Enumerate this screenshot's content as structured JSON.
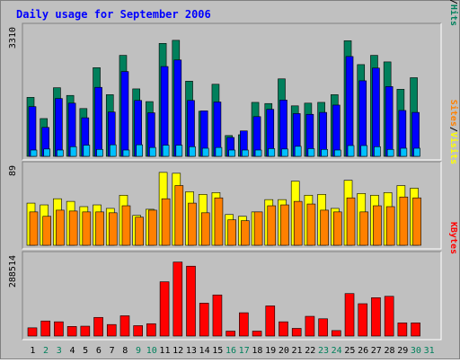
{
  "chart_data": {
    "type": "bar",
    "title": "Daily usage for September 2006",
    "categories": [
      "1",
      "2",
      "3",
      "4",
      "5",
      "6",
      "7",
      "8",
      "9",
      "10",
      "11",
      "12",
      "13",
      "14",
      "15",
      "16",
      "17",
      "18",
      "19",
      "20",
      "21",
      "22",
      "23",
      "24",
      "25",
      "26",
      "27",
      "28",
      "29",
      "30",
      "31"
    ],
    "weekend_days": [
      2,
      3,
      9,
      10,
      16,
      17,
      23,
      24,
      30,
      31
    ],
    "colors": {
      "background": "#c0c0c0",
      "frame": "#808080",
      "title": "#0000ff",
      "hits": "#00805c",
      "files": "#0000ff",
      "pages": "#00c0ff",
      "visits": "#ffff00",
      "sites": "#ff8000",
      "kbytes": "#ff0000",
      "weekday_label": "#000000",
      "weekend_label": "#00805c"
    },
    "panels": [
      {
        "id": "requests",
        "max_label": "3310",
        "ylim": [
          0,
          3310
        ],
        "legend": [
          {
            "text": "Pages",
            "color": "#00c0ff"
          },
          {
            "text": "/",
            "color": "#000000"
          },
          {
            "text": "Files",
            "color": "#0000ff"
          },
          {
            "text": "/",
            "color": "#000000"
          },
          {
            "text": "Hits",
            "color": "#00805c"
          }
        ],
        "series": [
          {
            "name": "Hits",
            "values": [
              1530,
              980,
              1780,
              1580,
              1240,
              2300,
              1600,
              2620,
              1750,
              1420,
              2930,
              3010,
              1950,
              1170,
              1870,
              540,
              560,
              1400,
              1370,
              2010,
              1310,
              1380,
              1400,
              1600,
              3000,
              2380,
              2620,
              2450,
              1740,
              2040,
              0
            ]
          },
          {
            "name": "Files",
            "values": [
              1290,
              750,
              1500,
              1380,
              1000,
              1790,
              1150,
              2200,
              1450,
              1130,
              2330,
              2500,
              1450,
              1180,
              1410,
              490,
              660,
              1030,
              1220,
              1460,
              1110,
              1090,
              1140,
              1330,
              2590,
              1960,
              2290,
              1810,
              1190,
              1140,
              0
            ]
          },
          {
            "name": "Pages",
            "values": [
              150,
              190,
              160,
              250,
              290,
              180,
              300,
              160,
              300,
              230,
              290,
              290,
              250,
              210,
              230,
              100,
              120,
              140,
              200,
              190,
              260,
              200,
              180,
              160,
              280,
              280,
              250,
              180,
              210,
              210,
              0
            ]
          }
        ]
      },
      {
        "id": "visits",
        "max_label": "89",
        "ylim": [
          0,
          89
        ],
        "legend": [
          {
            "text": "Sites",
            "color": "#ff8000"
          },
          {
            "text": "/",
            "color": "#000000"
          },
          {
            "text": "Visits",
            "color": "#ffff00"
          }
        ],
        "series": [
          {
            "name": "Visits",
            "values": [
              48,
              46,
              53,
              50,
              44,
              46,
              42,
              57,
              34,
              41,
              83,
              82,
              61,
              58,
              60,
              35,
              33,
              38,
              52,
              52,
              73,
              57,
              58,
              42,
              74,
              59,
              57,
              60,
              68,
              65,
              0
            ]
          },
          {
            "name": "Sites",
            "values": [
              38,
              33,
              40,
              39,
              38,
              38,
              37,
              45,
              32,
              40,
              53,
              68,
              48,
              37,
              54,
              29,
              28,
              38,
              45,
              46,
              50,
              47,
              40,
              38,
              54,
              38,
              45,
              44,
              55,
              54,
              0
            ]
          }
        ]
      },
      {
        "id": "kbytes",
        "max_label": "288514",
        "ylim": [
          0,
          288514
        ],
        "legend": [
          {
            "text": "KBytes",
            "color": "#ff0000"
          }
        ],
        "series": [
          {
            "name": "KBytes",
            "values": [
              30000,
              55000,
              52000,
              35000,
              36000,
              68000,
              42000,
              74000,
              38000,
              45000,
              198000,
              270000,
              255000,
              120000,
              150000,
              18000,
              85000,
              18000,
              110000,
              52000,
              28000,
              72000,
              63000,
              20000,
              155000,
              118000,
              140000,
              145000,
              48000,
              48000,
              0
            ]
          }
        ]
      }
    ]
  }
}
